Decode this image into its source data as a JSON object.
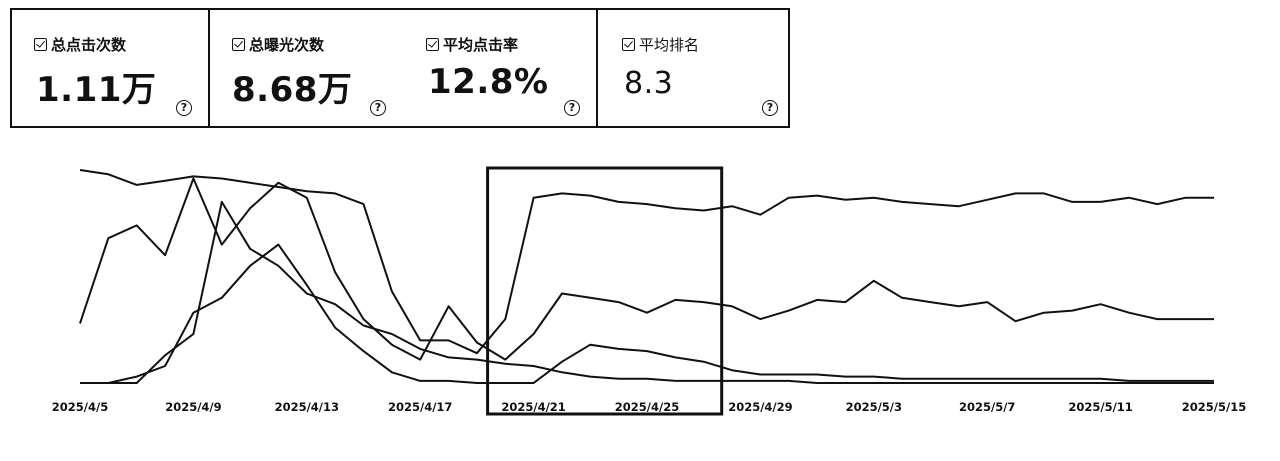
{
  "metrics": [
    {
      "label": "总点击次数",
      "value": "1.11万",
      "checked": true
    },
    {
      "label": "总曝光次数",
      "value": "8.68万",
      "checked": true
    },
    {
      "label": "平均点击率",
      "value": "12.8%",
      "checked": true
    },
    {
      "label": "平均排名",
      "value": "8.3",
      "checked": true
    }
  ],
  "help_glyph": "?",
  "chart_data": {
    "type": "line",
    "x": [
      "2025/4/5",
      "2025/4/6",
      "2025/4/7",
      "2025/4/8",
      "2025/4/9",
      "2025/4/10",
      "2025/4/11",
      "2025/4/12",
      "2025/4/13",
      "2025/4/14",
      "2025/4/15",
      "2025/4/16",
      "2025/4/17",
      "2025/4/18",
      "2025/4/19",
      "2025/4/20",
      "2025/4/21",
      "2025/4/22",
      "2025/4/23",
      "2025/4/24",
      "2025/4/25",
      "2025/4/26",
      "2025/4/27",
      "2025/4/28",
      "2025/4/29",
      "2025/4/30",
      "2025/5/1",
      "2025/5/2",
      "2025/5/3",
      "2025/5/4",
      "2025/5/5",
      "2025/5/6",
      "2025/5/7",
      "2025/5/8",
      "2025/5/9",
      "2025/5/10",
      "2025/5/11",
      "2025/5/12",
      "2025/5/13",
      "2025/5/14",
      "2025/5/15"
    ],
    "tick_labels": [
      "2025/4/5",
      "2025/4/9",
      "2025/4/13",
      "2025/4/17",
      "2025/4/21",
      "2025/4/25",
      "2025/4/29",
      "2025/5/3",
      "2025/5/7",
      "2025/5/11",
      "2025/5/15"
    ],
    "ylim": [
      0,
      100
    ],
    "series": [
      {
        "values": [
          100,
          98,
          93,
          95,
          97,
          96,
          94,
          92,
          90,
          89,
          84,
          43,
          20,
          20,
          14,
          30,
          87,
          89,
          88,
          85,
          84,
          82,
          81,
          83,
          79,
          87,
          88,
          86,
          87,
          85,
          84,
          83,
          86,
          89,
          89,
          85,
          85,
          87,
          84,
          87,
          87
        ]
      },
      {
        "values": [
          28,
          68,
          74,
          60,
          96,
          65,
          82,
          94,
          87,
          52,
          30,
          18,
          11,
          36,
          19,
          11,
          23,
          42,
          40,
          38,
          33,
          39,
          38,
          36,
          30,
          34,
          39,
          38,
          48,
          40,
          38,
          36,
          38,
          29,
          33,
          34,
          37,
          33,
          30,
          30,
          30
        ]
      },
      {
        "values": [
          0,
          0,
          3,
          8,
          33,
          40,
          55,
          65,
          46,
          26,
          15,
          5,
          1,
          1,
          0,
          0,
          0,
          10,
          18,
          16,
          15,
          12,
          10,
          6,
          4,
          4,
          4,
          3,
          3,
          2,
          2,
          2,
          2,
          2,
          2,
          2,
          2,
          1,
          1,
          1,
          1
        ]
      },
      {
        "values": [
          0,
          0,
          0,
          13,
          23,
          85,
          63,
          55,
          42,
          37,
          27,
          23,
          16,
          12,
          11,
          9,
          8,
          5,
          3,
          2,
          2,
          1,
          1,
          1,
          1,
          1,
          0,
          0,
          0,
          0,
          0,
          0,
          0,
          0,
          0,
          0,
          0,
          0,
          0,
          0,
          0
        ]
      }
    ],
    "highlight": {
      "from": "2025/4/21",
      "to": "2025/4/27"
    },
    "legend": "none",
    "grid": false
  }
}
